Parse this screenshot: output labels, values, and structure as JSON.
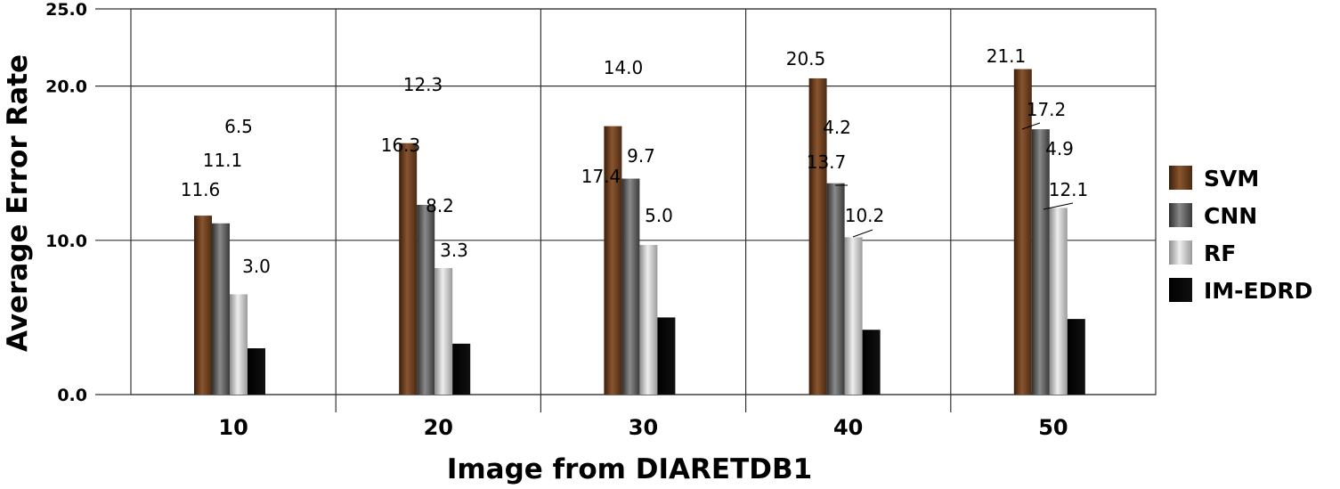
{
  "chart_data": {
    "type": "bar",
    "xlabel": "Image from DIARETDB1",
    "ylabel": "Average Error Rate",
    "ylim": [
      0,
      25
    ],
    "yticks": [
      "0.0",
      "10.0",
      "20.0",
      "25.0"
    ],
    "categories": [
      "10",
      "20",
      "30",
      "40",
      "50"
    ],
    "grid": true,
    "legend_position": "right",
    "series": [
      {
        "name": "SVM",
        "color": "#6b3d1c",
        "values": [
          11.6,
          16.3,
          17.4,
          20.5,
          21.1
        ]
      },
      {
        "name": "CNN",
        "color": "#666666",
        "values": [
          11.1,
          12.3,
          14.0,
          13.7,
          17.2
        ]
      },
      {
        "name": "RF",
        "color": "#bdbdbd",
        "values": [
          6.5,
          8.2,
          9.7,
          10.2,
          12.1
        ]
      },
      {
        "name": "IM-EDRD",
        "color": "#000000",
        "values": [
          3.0,
          3.3,
          5.0,
          4.2,
          4.9
        ]
      }
    ],
    "data_labels": [
      [
        {
          "text": "11.6"
        },
        {
          "text": "11.1"
        },
        {
          "text": "6.5"
        },
        {
          "text": "3.0"
        }
      ],
      [
        {
          "text": "16.3"
        },
        {
          "text": "12.3"
        },
        {
          "text": "8.2"
        },
        {
          "text": "3.3"
        }
      ],
      [
        {
          "text": "17.4"
        },
        {
          "text": "14.0"
        },
        {
          "text": "9.7"
        },
        {
          "text": "5.0"
        }
      ],
      [
        {
          "text": "20.5"
        },
        {
          "text": "4.2"
        },
        {
          "text": "13.7"
        },
        {
          "text": "10.2"
        }
      ],
      [
        {
          "text": "21.1"
        },
        {
          "text": "17.2"
        },
        {
          "text": "4.9"
        },
        {
          "text": "12.1"
        }
      ]
    ]
  }
}
